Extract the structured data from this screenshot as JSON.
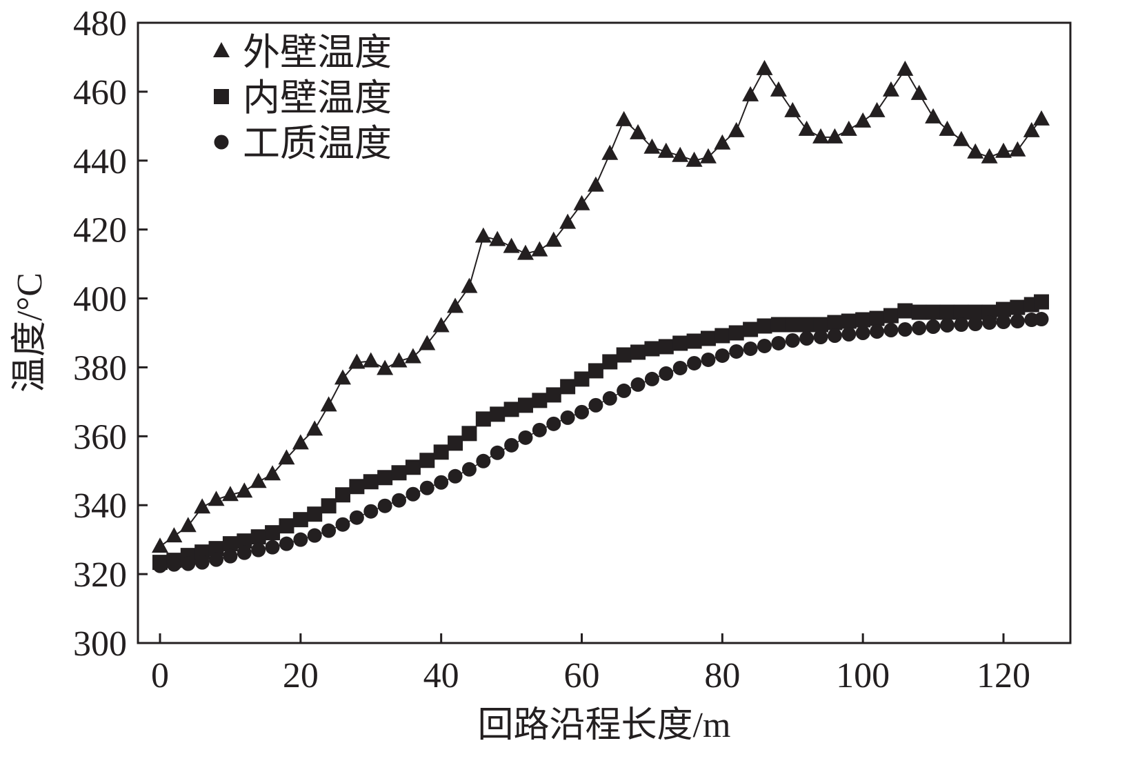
{
  "chart_data": {
    "type": "line",
    "title": "",
    "xlabel": "回路沿程长度/m",
    "ylabel": "温度/°C",
    "xlim": [
      -3,
      130
    ],
    "ylim": [
      300,
      480
    ],
    "xticks": [
      0,
      20,
      40,
      60,
      80,
      100,
      120
    ],
    "yticks": [
      300,
      320,
      340,
      360,
      380,
      400,
      420,
      440,
      460,
      480
    ],
    "grid": false,
    "legend_position": "top-left",
    "x": [
      0,
      2,
      4,
      6,
      8,
      10,
      12,
      14,
      16,
      18,
      20,
      22,
      24,
      26,
      28,
      30,
      32,
      34,
      36,
      38,
      40,
      42,
      44,
      46,
      48,
      50,
      52,
      54,
      56,
      58,
      60,
      62,
      64,
      66,
      68,
      70,
      72,
      74,
      76,
      78,
      80,
      82,
      84,
      86,
      88,
      90,
      92,
      94,
      96,
      98,
      100,
      102,
      104,
      106,
      108,
      110,
      112,
      114,
      116,
      118,
      120,
      122,
      124,
      125.4
    ],
    "series": [
      {
        "name": "外壁温度",
        "marker": "triangle",
        "line": true,
        "color": "#231f20",
        "values": [
          328,
          331,
          334,
          339.4,
          341.6,
          343,
          344,
          346.8,
          349,
          353.6,
          358,
          362,
          369,
          376.8,
          381.4,
          381.8,
          379.6,
          381.8,
          383,
          386.8,
          392,
          397.6,
          403.4,
          418,
          417,
          415,
          413,
          414,
          416.8,
          422,
          427.4,
          432.8,
          442,
          451.8,
          448,
          443.8,
          442.6,
          441.4,
          440,
          441,
          445,
          448.6,
          459,
          466.6,
          460.4,
          454.4,
          449,
          446.8,
          446.8,
          449,
          451.4,
          454.4,
          460.4,
          466.4,
          459.4,
          452.6,
          449,
          446,
          442.4,
          441,
          442.6,
          443,
          448.6,
          452
        ]
      },
      {
        "name": "内壁温度",
        "marker": "square",
        "line": false,
        "color": "#231f20",
        "values": [
          323.4,
          324,
          325.4,
          326.4,
          327.4,
          328.8,
          329.6,
          330.8,
          332,
          334,
          335.8,
          337.4,
          339.8,
          343,
          345.4,
          346.8,
          348,
          349.4,
          351,
          353,
          355.4,
          358,
          360.8,
          365,
          366.4,
          367.8,
          369,
          370.4,
          372,
          374.4,
          376.6,
          379,
          381.6,
          383.6,
          384.4,
          385.4,
          386,
          387,
          387.6,
          388.4,
          389.2,
          390,
          391,
          392,
          392.4,
          392.4,
          392.4,
          392.4,
          393,
          393.4,
          393.8,
          394.2,
          395,
          396.4,
          396,
          396,
          396,
          396,
          396,
          396,
          396.8,
          397.4,
          398.2,
          399
        ]
      },
      {
        "name": "工质温度",
        "marker": "circle",
        "line": false,
        "color": "#231f20",
        "values": [
          322.4,
          322.8,
          323,
          323.4,
          324.2,
          325.2,
          326.2,
          327,
          327.8,
          328.8,
          330,
          331.2,
          332.6,
          334.4,
          336.4,
          338.2,
          339.8,
          341.4,
          343.2,
          345,
          346.6,
          348.4,
          350.4,
          352.8,
          355.2,
          357.4,
          359.6,
          361.8,
          363.6,
          365.4,
          367,
          369,
          371,
          373.2,
          375,
          376.6,
          378.2,
          379.8,
          381.2,
          382.2,
          383.4,
          384.6,
          385.4,
          386.2,
          387,
          387.8,
          388.4,
          388.8,
          389.2,
          389.6,
          390,
          390.4,
          390.8,
          391,
          391.4,
          391.8,
          392.2,
          392.4,
          392.6,
          393,
          393.2,
          393.4,
          393.8,
          394
        ]
      }
    ]
  }
}
